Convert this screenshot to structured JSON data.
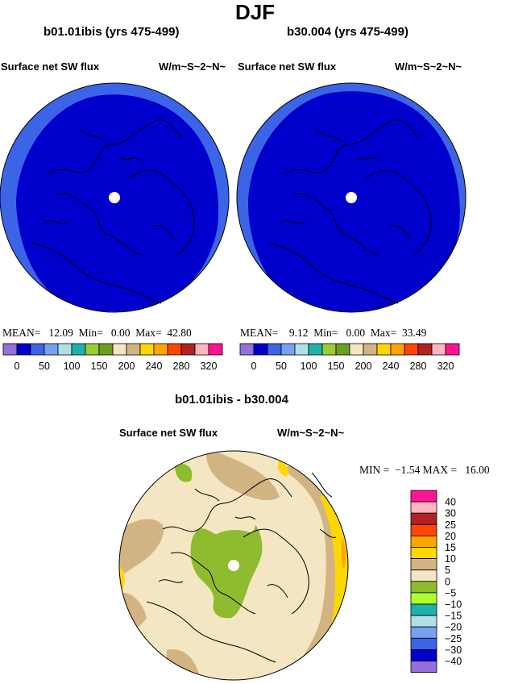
{
  "page": {
    "title": "DJF"
  },
  "panels": [
    {
      "case_title": "b01.01ibis (yrs 475-499)",
      "left_label": "Surface net SW flux",
      "right_label": "W/m~S~2~N~",
      "stats": {
        "mean_label": "MEAN=",
        "mean": "12.09",
        "min_label": "Min=",
        "min": "0.00",
        "max_label": "Max=",
        "max": "42.80"
      }
    },
    {
      "case_title": "b30.004 (yrs 475-499)",
      "left_label": "Surface net SW flux",
      "right_label": "W/m~S~2~N~",
      "stats": {
        "mean_label": "MEAN=",
        "mean": "9.12",
        "min_label": "Min=",
        "min": "0.00",
        "max_label": "Max=",
        "max": "33.49"
      }
    }
  ],
  "diff_panel": {
    "title": "b01.01ibis - b30.004",
    "left_label": "Surface net SW flux",
    "right_label": "W/m~S~2~N~",
    "stats": {
      "min_label": "MIN =",
      "min": "−1.54",
      "max_label": "MAX =",
      "max": "16.00"
    }
  },
  "colorbar_main": {
    "colors": [
      "#9370db",
      "#0000cd",
      "#3c64e6",
      "#78a0f0",
      "#b0e0e6",
      "#20b2aa",
      "#9acd32",
      "#6b9e23",
      "#f5e6c3",
      "#d2b482",
      "#ffd700",
      "#ffa500",
      "#ff4500",
      "#b22222",
      "#ffb6c1",
      "#ff1493"
    ],
    "tick_labels": [
      "0",
      "50",
      "100",
      "150",
      "200",
      "240",
      "280",
      "320"
    ]
  },
  "colorbar_diff": {
    "colors_top_to_bottom": [
      "#ff1493",
      "#ffb6c1",
      "#b22222",
      "#ff4500",
      "#ffa500",
      "#ffd700",
      "#d2b482",
      "#f5e6c3",
      "#8fbc2f",
      "#adff2f",
      "#20b2aa",
      "#b0e0e6",
      "#78a0f0",
      "#3c64e6",
      "#0000cd",
      "#9370db"
    ],
    "tick_labels_top_to_bottom": [
      "40",
      "30",
      "25",
      "20",
      "15",
      "10",
      "5",
      "0",
      "−5",
      "−10",
      "−15",
      "−20",
      "−25",
      "−30",
      "−40"
    ]
  },
  "map_colors": {
    "ocean_fill": "#0000cd",
    "rim_fill": "#3c64e6",
    "pole_hole": "#ffffff",
    "diff_base": "#f5e6c3",
    "diff_tan": "#d2b482",
    "diff_green": "#8fbc2f",
    "diff_yellow": "#ffd700",
    "diff_orange": "#ffa500"
  }
}
